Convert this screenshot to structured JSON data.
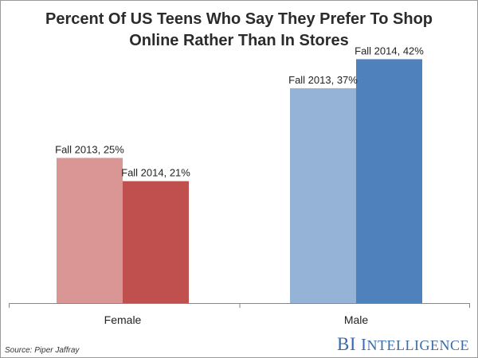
{
  "title_line1": "Percent Of US Teens Who Say They Prefer To Shop",
  "title_line2": "Online Rather Than In Stores",
  "source": "Source: Piper Jaffray",
  "brand": {
    "prefix": "BI",
    "first_letter": "I",
    "rest": "NTELLIGENCE"
  },
  "colors": {
    "female_2013": "#d99694",
    "female_2014": "#c0504d",
    "male_2013": "#95b3d7",
    "male_2014": "#4f81bd",
    "axis": "#888888",
    "label_text": "#222222"
  },
  "chart_data": {
    "type": "bar",
    "title": "Percent Of US Teens Who Say They Prefer To Shop Online Rather Than In Stores",
    "categories": [
      "Female",
      "Male"
    ],
    "series": [
      {
        "name": "Fall 2013",
        "values": [
          25,
          37
        ]
      },
      {
        "name": "Fall 2014",
        "values": [
          21,
          42
        ]
      }
    ],
    "data_labels": [
      [
        "Fall 2013, 25%",
        "Fall 2014, 21%"
      ],
      [
        "Fall 2013, 37%",
        "Fall 2014, 42%"
      ]
    ],
    "ylim": [
      0,
      50
    ],
    "grid": false,
    "legend": "none"
  }
}
